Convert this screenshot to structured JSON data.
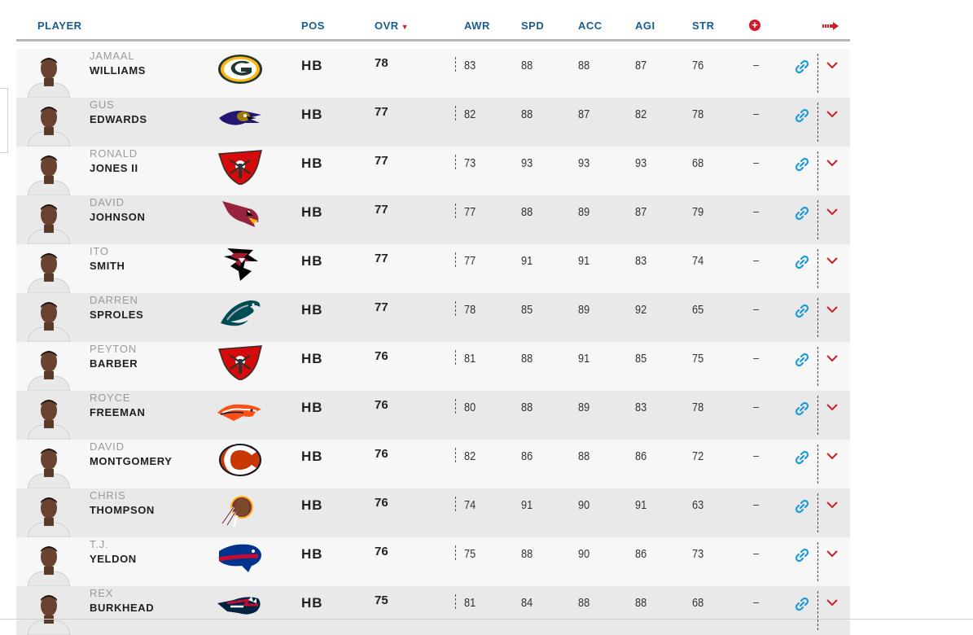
{
  "header": {
    "player": "PLAYER",
    "pos": "POS",
    "ovr": "OVR",
    "awr": "AWR",
    "spd": "SPD",
    "acc": "ACC",
    "agi": "AGI",
    "str": "STR",
    "add_icon": "plus-circle-icon",
    "more_icon": "arrow-right-icon",
    "sort_icon": "sort-down-triangle"
  },
  "colors": {
    "header_text": "#1a5c92",
    "accent_red": "#d11a2a",
    "link_blue": "#1a9bd7",
    "row_light": "#f7f7f7",
    "row_dark": "#e9e9e9"
  },
  "players": [
    {
      "first": "JAMAAL",
      "last": "WILLIAMS",
      "team": "packers",
      "pos": "HB",
      "ovr": "78",
      "awr": "83",
      "spd": "88",
      "acc": "88",
      "agi": "87",
      "str": "76",
      "extra": "–"
    },
    {
      "first": "GUS",
      "last": "EDWARDS",
      "team": "ravens",
      "pos": "HB",
      "ovr": "77",
      "awr": "82",
      "spd": "88",
      "acc": "87",
      "agi": "82",
      "str": "78",
      "extra": "–"
    },
    {
      "first": "RONALD",
      "last": "JONES II",
      "team": "buccaneers",
      "pos": "HB",
      "ovr": "77",
      "awr": "73",
      "spd": "93",
      "acc": "93",
      "agi": "93",
      "str": "68",
      "extra": "–"
    },
    {
      "first": "DAVID",
      "last": "JOHNSON",
      "team": "cardinals",
      "pos": "HB",
      "ovr": "77",
      "awr": "77",
      "spd": "88",
      "acc": "89",
      "agi": "87",
      "str": "79",
      "extra": "–"
    },
    {
      "first": "ITO",
      "last": "SMITH",
      "team": "falcons",
      "pos": "HB",
      "ovr": "77",
      "awr": "77",
      "spd": "91",
      "acc": "91",
      "agi": "83",
      "str": "74",
      "extra": "–"
    },
    {
      "first": "DARREN",
      "last": "SPROLES",
      "team": "eagles",
      "pos": "HB",
      "ovr": "77",
      "awr": "78",
      "spd": "85",
      "acc": "89",
      "agi": "92",
      "str": "65",
      "extra": "–"
    },
    {
      "first": "PEYTON",
      "last": "BARBER",
      "team": "buccaneers",
      "pos": "HB",
      "ovr": "76",
      "awr": "81",
      "spd": "88",
      "acc": "91",
      "agi": "85",
      "str": "75",
      "extra": "–"
    },
    {
      "first": "ROYCE",
      "last": "FREEMAN",
      "team": "broncos",
      "pos": "HB",
      "ovr": "76",
      "awr": "80",
      "spd": "88",
      "acc": "89",
      "agi": "83",
      "str": "78",
      "extra": "–"
    },
    {
      "first": "DAVID",
      "last": "MONTGOMERY",
      "team": "bears",
      "pos": "HB",
      "ovr": "76",
      "awr": "82",
      "spd": "86",
      "acc": "88",
      "agi": "86",
      "str": "72",
      "extra": "–"
    },
    {
      "first": "CHRIS",
      "last": "THOMPSON",
      "team": "redskins",
      "pos": "HB",
      "ovr": "76",
      "awr": "74",
      "spd": "91",
      "acc": "90",
      "agi": "91",
      "str": "63",
      "extra": "–"
    },
    {
      "first": "T.J.",
      "last": "YELDON",
      "team": "bills",
      "pos": "HB",
      "ovr": "76",
      "awr": "75",
      "spd": "88",
      "acc": "90",
      "agi": "86",
      "str": "73",
      "extra": "–"
    },
    {
      "first": "REX",
      "last": "BURKHEAD",
      "team": "patriots",
      "pos": "HB",
      "ovr": "75",
      "awr": "81",
      "spd": "84",
      "acc": "88",
      "agi": "88",
      "str": "68",
      "extra": "–"
    }
  ]
}
